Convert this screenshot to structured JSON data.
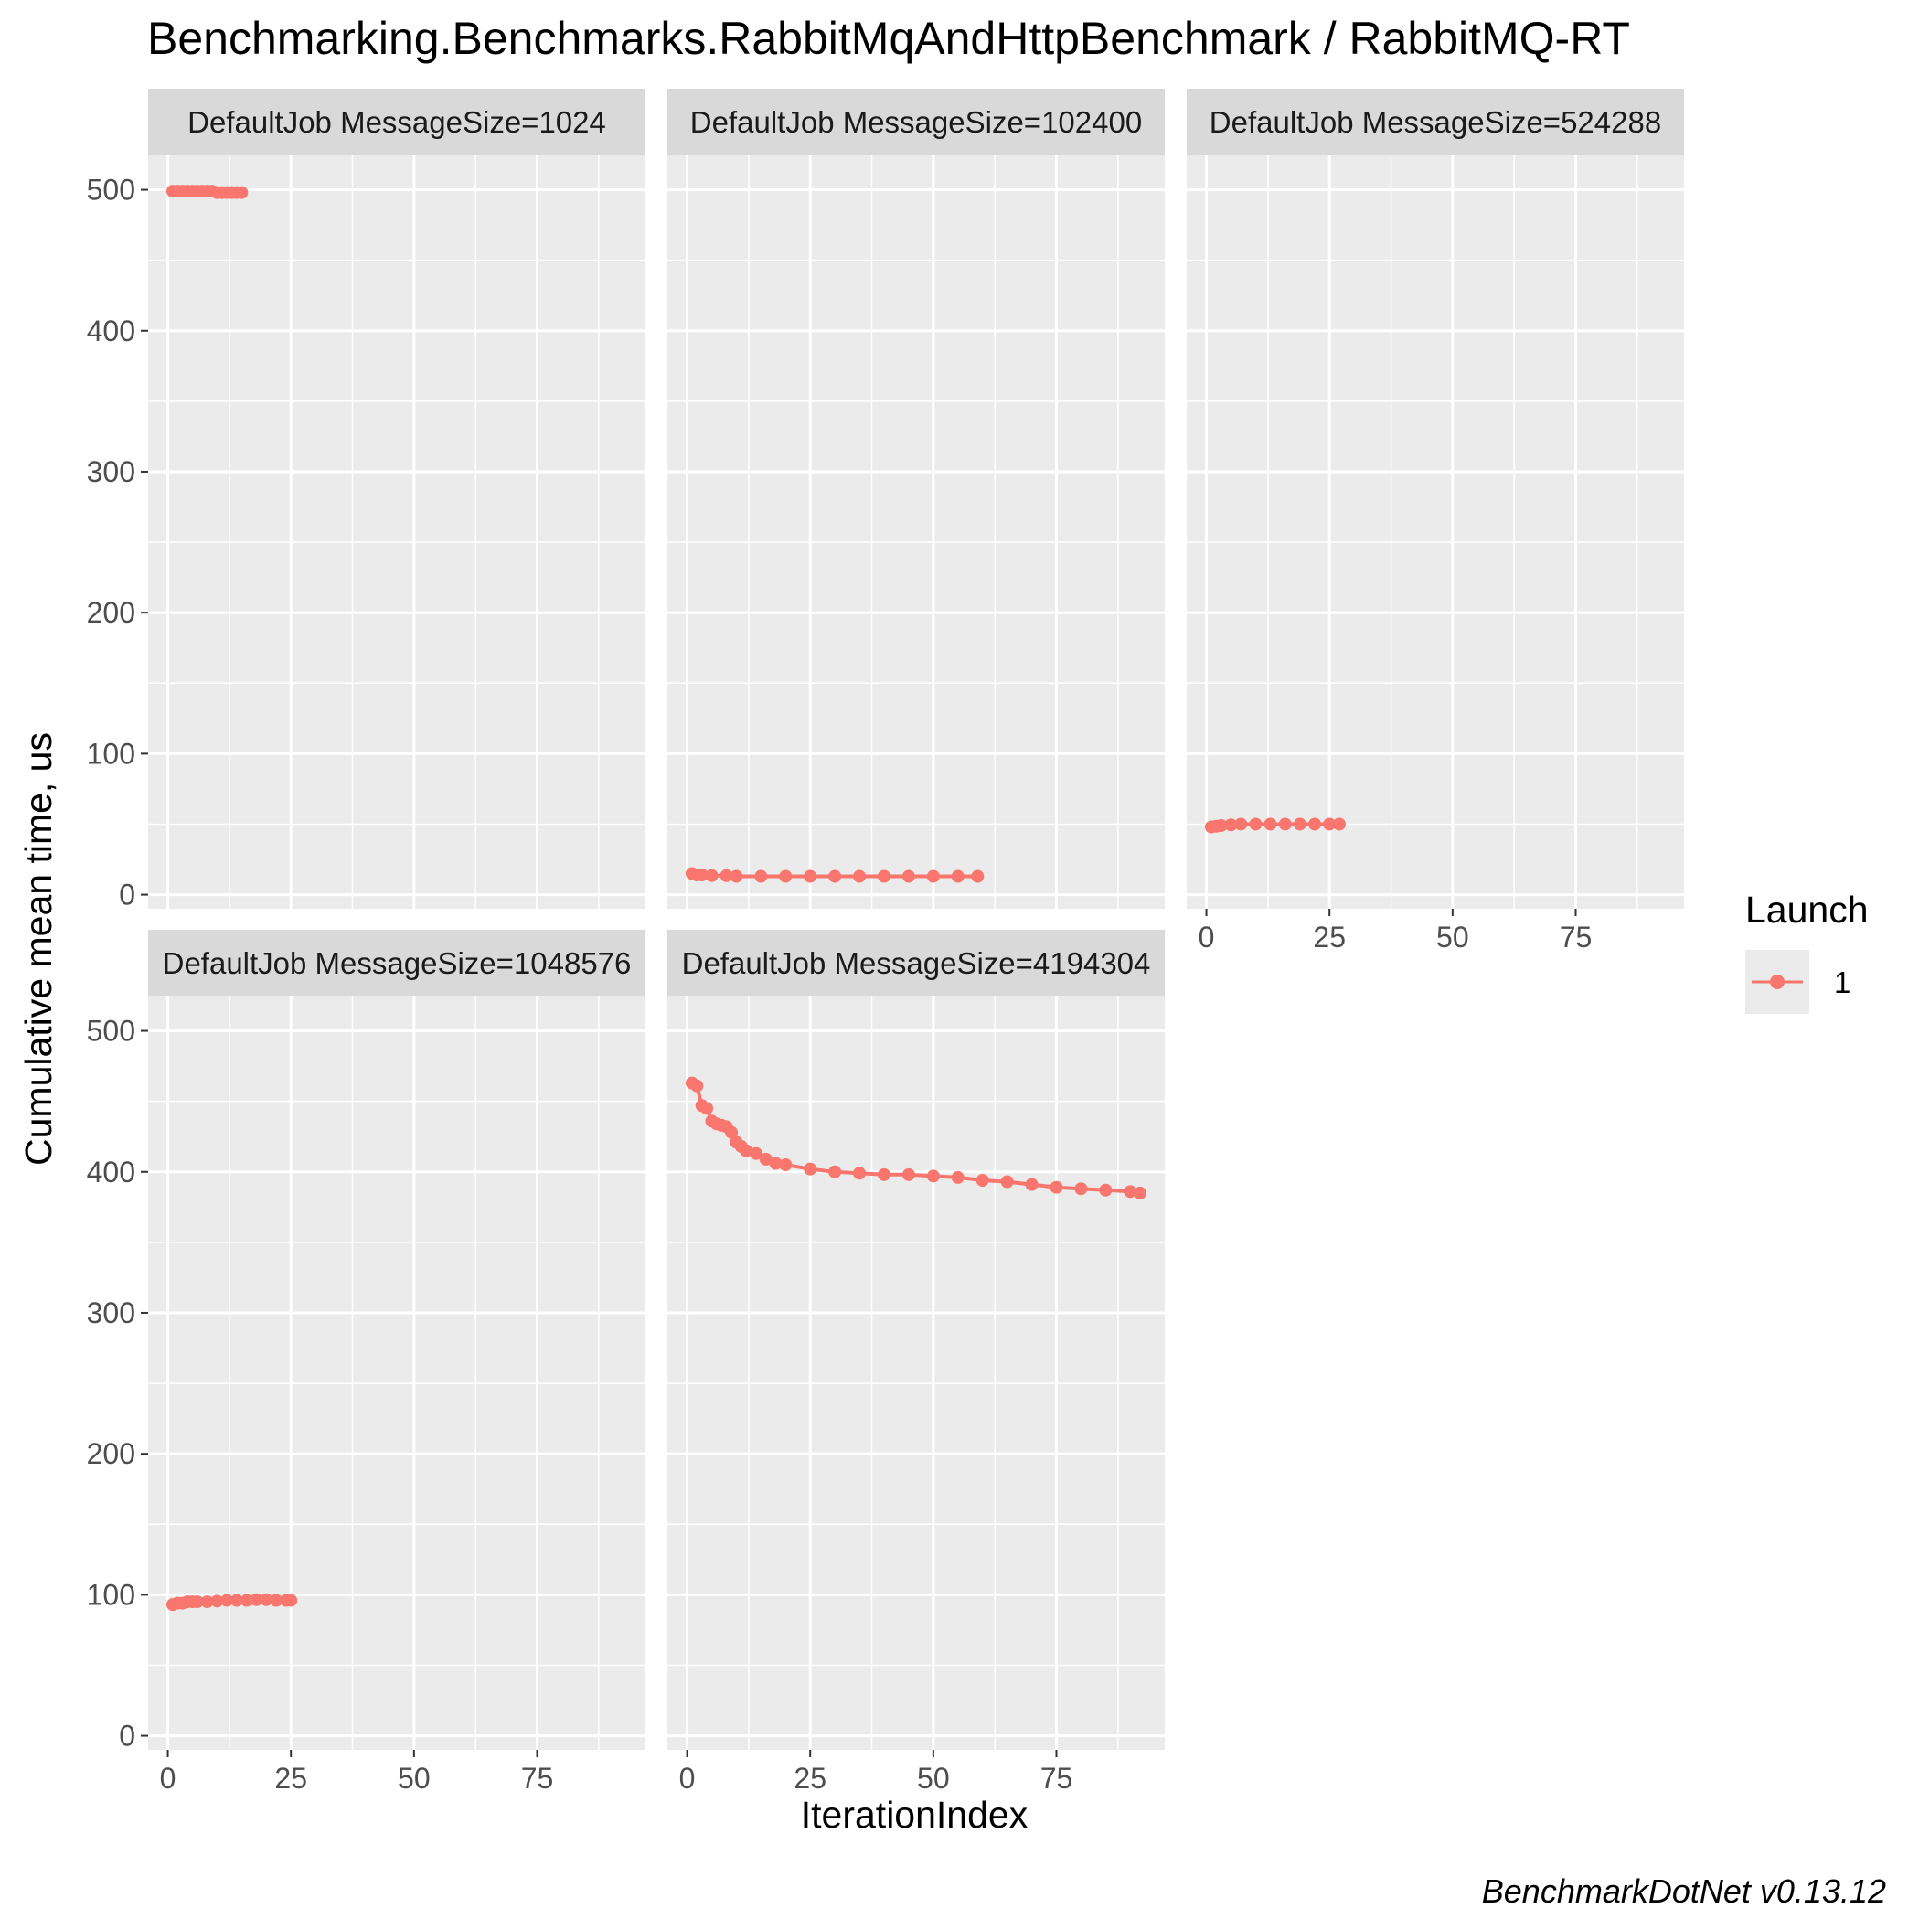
{
  "chart_data": {
    "type": "line",
    "title": "Benchmarking.Benchmarks.RabbitMqAndHttpBenchmark / RabbitMQ-RT",
    "xlabel": "IterationIndex",
    "ylabel": "Cumulative mean time, us",
    "caption": "BenchmarkDotNet v0.13.12",
    "xlim": [
      -4,
      97
    ],
    "ylim": [
      -10,
      525
    ],
    "x_ticks": [
      0,
      25,
      50,
      75
    ],
    "y_ticks": [
      0,
      100,
      200,
      300,
      400,
      500
    ],
    "grid": true,
    "legend": {
      "title": "Launch",
      "entries": [
        "1"
      ],
      "position": "right"
    },
    "series_color": "#F8766D",
    "panels": [
      {
        "label": "DefaultJob MessageSize=1024",
        "series": [
          {
            "name": "1",
            "x": [
              1,
              2,
              3,
              4,
              5,
              6,
              7,
              8,
              9,
              10,
              11,
              12,
              13,
              14,
              15
            ],
            "y": [
              499,
              499,
              499,
              499,
              499,
              499,
              499,
              499,
              499,
              498,
              498,
              498,
              498,
              498,
              498
            ]
          }
        ]
      },
      {
        "label": "DefaultJob MessageSize=102400",
        "series": [
          {
            "name": "1",
            "x": [
              1,
              2,
              3,
              5,
              8,
              10,
              15,
              20,
              25,
              30,
              35,
              40,
              45,
              50,
              55,
              59
            ],
            "y": [
              15,
              14,
              14,
              13.5,
              13.5,
              13,
              13,
              13,
              13,
              13,
              13,
              13,
              13,
              13,
              13,
              13
            ]
          }
        ]
      },
      {
        "label": "DefaultJob MessageSize=524288",
        "series": [
          {
            "name": "1",
            "x": [
              1,
              2,
              3,
              5,
              7,
              10,
              13,
              16,
              19,
              22,
              25,
              27
            ],
            "y": [
              48,
              48.5,
              49,
              49.5,
              50,
              50,
              50,
              50,
              50,
              50,
              50,
              50
            ]
          }
        ]
      },
      {
        "label": "DefaultJob MessageSize=1048576",
        "series": [
          {
            "name": "1",
            "x": [
              1,
              2,
              3,
              4,
              5,
              6,
              8,
              10,
              12,
              14,
              16,
              18,
              20,
              22,
              24,
              25
            ],
            "y": [
              93,
              94,
              94,
              95,
              95,
              95,
              95,
              95.5,
              96,
              96,
              96,
              96.5,
              96.5,
              96,
              96,
              96
            ]
          }
        ]
      },
      {
        "label": "DefaultJob MessageSize=4194304",
        "series": [
          {
            "name": "1",
            "x": [
              1,
              2,
              3,
              4,
              5,
              6,
              7,
              8,
              9,
              10,
              11,
              12,
              14,
              16,
              18,
              20,
              25,
              30,
              35,
              40,
              45,
              50,
              55,
              60,
              65,
              70,
              75,
              80,
              85,
              90,
              92
            ],
            "y": [
              463,
              461,
              447,
              445,
              436,
              434,
              433,
              432,
              428,
              421,
              418,
              415,
              413,
              409,
              406,
              405,
              402,
              400,
              399,
              398,
              398,
              397,
              396,
              394,
              393,
              391,
              389,
              388,
              387,
              386,
              385
            ]
          }
        ]
      }
    ]
  }
}
